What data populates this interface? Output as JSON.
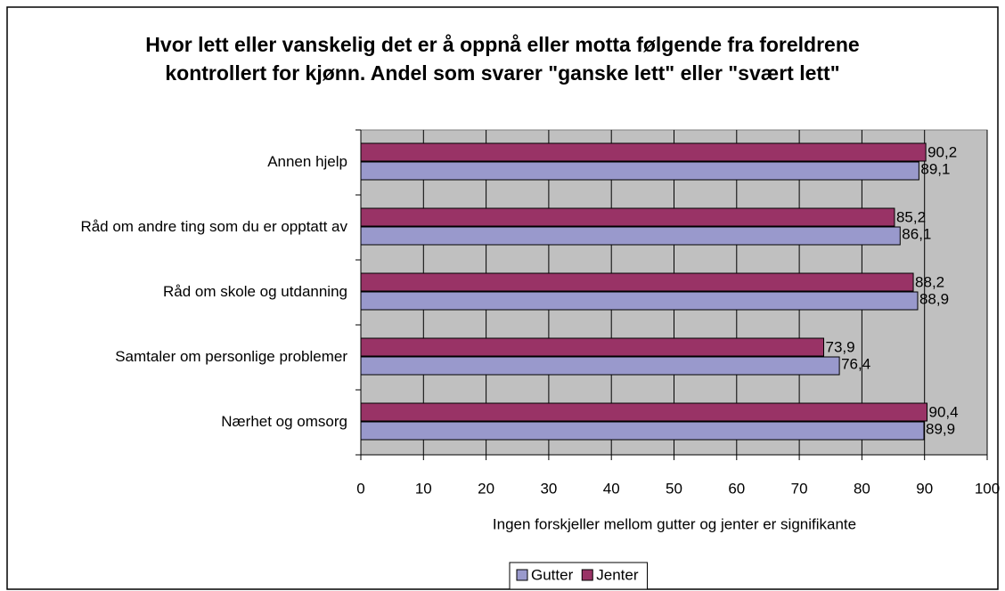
{
  "chart_data": {
    "type": "hbar",
    "title": [
      "Hvor lett eller vanskelig det er å oppnå eller motta følgende fra foreldrene",
      "kontrollert for kjønn. Andel som svarer \"ganske lett\" eller \"svært lett\""
    ],
    "xlabel": "Ingen forskjeller mellom gutter og jenter er signifikante",
    "categories": [
      "Annen hjelp",
      "Råd om andre ting som du er opptatt av",
      "Råd om skole og utdanning",
      "Samtaler om personlige problemer",
      "Nærhet og omsorg"
    ],
    "series": [
      {
        "name": "Gutter",
        "color": "#9999cc",
        "values": [
          89.1,
          86.1,
          88.9,
          76.4,
          89.9
        ],
        "value_labels": [
          "89,1",
          "86,1",
          "88,9",
          "76,4",
          "89,9"
        ]
      },
      {
        "name": "Jenter",
        "color": "#993366",
        "values": [
          90.2,
          85.2,
          88.2,
          73.9,
          90.4
        ],
        "value_labels": [
          "90,2",
          "85,2",
          "88,2",
          "73,9",
          "90,4"
        ]
      }
    ],
    "xlim": [
      0,
      100
    ],
    "xticks": [
      0,
      10,
      20,
      30,
      40,
      50,
      60,
      70,
      80,
      90,
      100
    ],
    "grid": true,
    "legend": "bottom"
  }
}
